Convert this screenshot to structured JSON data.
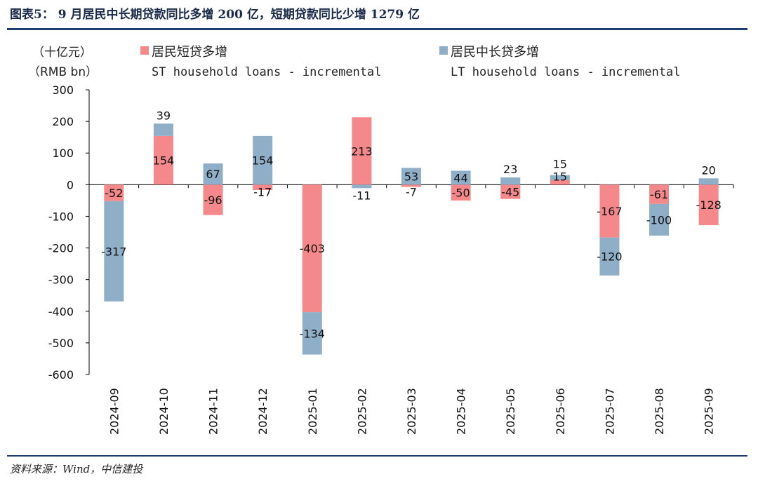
{
  "header": {
    "title": "图表5：  9 月居民中长期贷款同比多增 200 亿，短期贷款同比少增 1279 亿"
  },
  "footer": {
    "source": "资料来源：Wind，中信建投"
  },
  "chart_data": {
    "type": "bar",
    "stacked": true,
    "unit_cn": "（十亿元）",
    "unit_en": "（RMB bn）",
    "categories": [
      "2024-09",
      "2024-10",
      "2024-11",
      "2024-12",
      "2025-01",
      "2025-02",
      "2025-03",
      "2025-04",
      "2025-05",
      "2025-06",
      "2025-07",
      "2025-08",
      "2025-09"
    ],
    "series": [
      {
        "name_cn": "居民短贷多增",
        "name_en": "ST household loans - incremental",
        "color": "#f5888a",
        "values": [
          -52,
          154,
          -96,
          -17,
          -403,
          213,
          -7,
          -50,
          -45,
          15,
          -167,
          -61,
          -128
        ]
      },
      {
        "name_cn": "居民中长贷多增",
        "name_en": "LT household loans - incremental",
        "color": "#8faec8",
        "values": [
          -317,
          39,
          67,
          154,
          -134,
          -11,
          53,
          44,
          23,
          15,
          -120,
          -100,
          20
        ]
      }
    ],
    "ylim": [
      -600,
      300
    ],
    "yticks": [
      "300",
      "200",
      "100",
      "0",
      "-100",
      "-200",
      "-300",
      "-400",
      "-500",
      "-600"
    ],
    "ytick_values": [
      300,
      200,
      100,
      0,
      -100,
      -200,
      -300,
      -400,
      -500,
      -600
    ]
  }
}
